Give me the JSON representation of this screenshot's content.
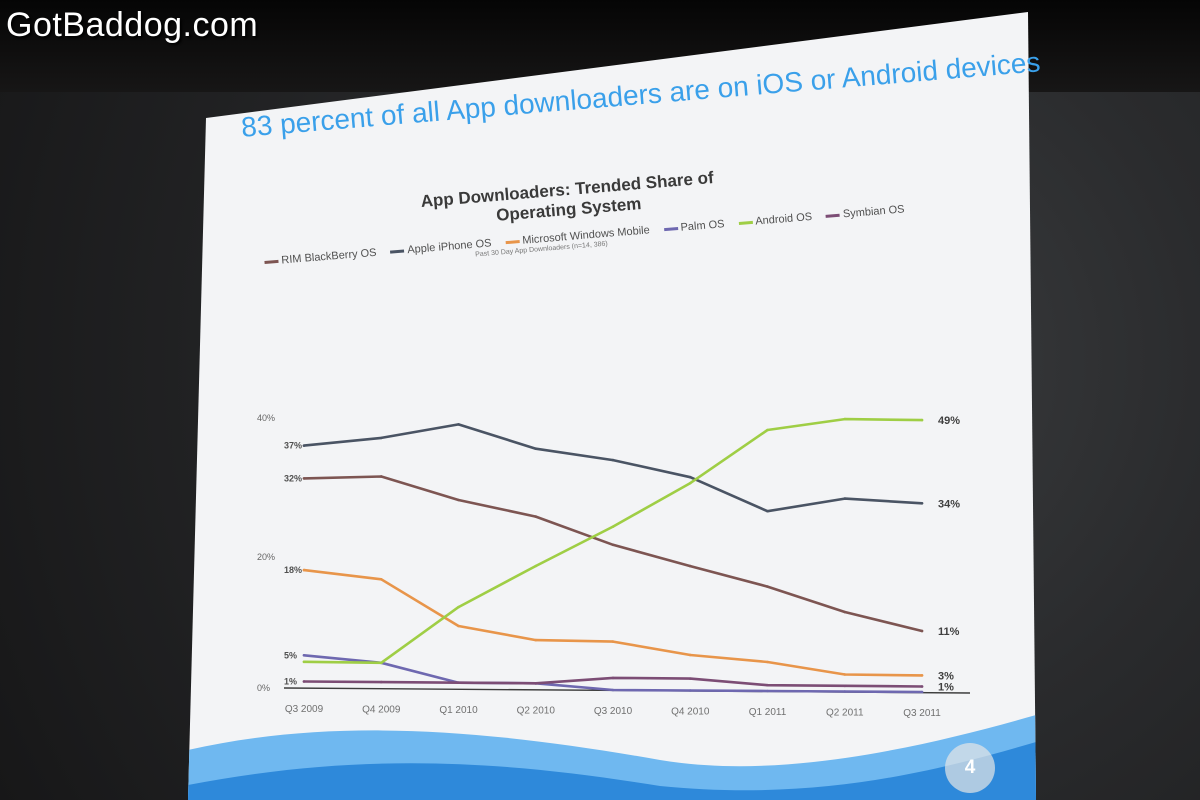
{
  "watermark": "GotBaddog.com",
  "slide": {
    "title": "83 percent of all App downloaders are on iOS or Android devices",
    "page_number": "4"
  },
  "chart_data": {
    "type": "line",
    "title": "App Downloaders: Trended Share of Operating System",
    "subtitle": "Past 30 Day App Downloaders (n=14, 386)",
    "xlabel": "",
    "ylabel": "",
    "categories": [
      "Q3 2009",
      "Q4 2009",
      "Q1 2010",
      "Q2 2010",
      "Q3 2010",
      "Q4 2010",
      "Q1 2011",
      "Q2 2011",
      "Q3 2011"
    ],
    "ylim": [
      0,
      40
    ],
    "y_ticks": [
      {
        "value": 0,
        "label": "0%"
      },
      {
        "value": 20,
        "label": "20%"
      },
      {
        "value": 40,
        "label": "40%"
      }
    ],
    "legend_position": "top",
    "grid": false,
    "series": [
      {
        "name": "RIM BlackBerry OS",
        "color": "#7d5552",
        "values": [
          32,
          33,
          30,
          28,
          24,
          21,
          18,
          14,
          11
        ],
        "start_label": "32%",
        "end_label": "11%"
      },
      {
        "name": "Apple iPhone OS",
        "color": "#4a5464",
        "values": [
          37,
          39,
          42,
          39,
          38,
          36,
          31,
          34,
          34
        ],
        "start_label": "37%",
        "end_label": "34%"
      },
      {
        "name": "Microsoft Windows Mobile",
        "color": "#e8954a",
        "values": [
          18,
          17,
          10,
          8,
          8,
          6,
          5,
          3,
          3
        ],
        "start_label": "18%",
        "end_label": "3%"
      },
      {
        "name": "Palm OS",
        "color": "#6e68b0",
        "values": [
          5,
          4,
          1,
          1,
          0,
          0,
          0,
          0,
          0
        ],
        "start_label": "5%",
        "end_label": ""
      },
      {
        "name": "Android OS",
        "color": "#9fce45",
        "values": [
          4,
          4,
          13,
          20,
          27,
          35,
          45,
          48,
          49
        ],
        "start_label": "",
        "end_label": "49%"
      },
      {
        "name": "Symbian OS",
        "color": "#7c4d75",
        "values": [
          1,
          1,
          1,
          1,
          2,
          2,
          1,
          1,
          1
        ],
        "start_label": "1%",
        "end_label": "1%"
      }
    ]
  }
}
